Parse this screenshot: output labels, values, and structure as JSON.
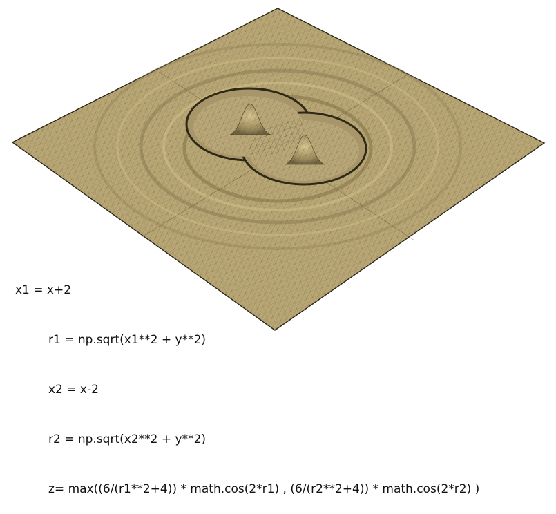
{
  "surface": {
    "colors": {
      "fill_light": "#c2b07e",
      "fill_mid": "#a99768",
      "fill_dark": "#6e6240",
      "mesh_line": "#3f3a2a",
      "edge": "#2b2618"
    }
  },
  "code": {
    "lines": [
      "x1 = x+2",
      "r1 = np.sqrt(x1**2 + y**2)",
      "x2 = x-2",
      "r2 = np.sqrt(x2**2 + y**2)",
      "z= max((6/(r1**2+4)) * math.cos(2*r1) , (6/(r2**2+4)) * math.cos(2*r2) )"
    ]
  }
}
